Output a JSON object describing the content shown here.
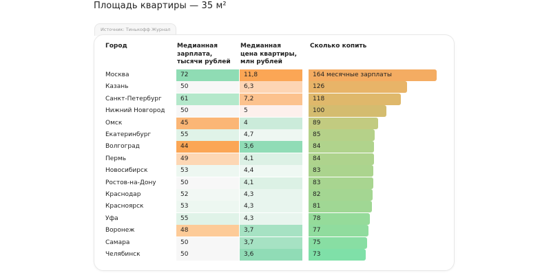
{
  "page_title": "Площадь квартиры — 35 м²",
  "source": "Источник: Тинькофф Журнал",
  "chart_data": {
    "type": "table",
    "title": "Площадь квартиры — 35 м²",
    "columns": [
      "Город",
      "Медианная\nзарплата,\nтысячи рублей",
      "Медианная\nцена квартиры,\nмлн рублей",
      "Сколько копить"
    ],
    "unit_label": "месячные зарплаты",
    "rows": [
      {
        "city": "Москва",
        "salary": "72",
        "price": "11,8",
        "months": 164,
        "months_label": "164 месячные зарплаты"
      },
      {
        "city": "Казань",
        "salary": "50",
        "price": "6,3",
        "months": 126,
        "months_label": "126"
      },
      {
        "city": "Санкт-Петербург",
        "salary": "61",
        "price": "7,2",
        "months": 118,
        "months_label": "118"
      },
      {
        "city": "Нижний Новгород",
        "salary": "50",
        "price": "5",
        "months": 100,
        "months_label": "100"
      },
      {
        "city": "Омск",
        "salary": "45",
        "price": "4",
        "months": 89,
        "months_label": "89"
      },
      {
        "city": "Екатеринбург",
        "salary": "55",
        "price": "4,7",
        "months": 85,
        "months_label": "85"
      },
      {
        "city": "Волгоград",
        "salary": "44",
        "price": "3,6",
        "months": 84,
        "months_label": "84"
      },
      {
        "city": "Пермь",
        "salary": "49",
        "price": "4,1",
        "months": 84,
        "months_label": "84"
      },
      {
        "city": "Новосибирск",
        "salary": "53",
        "price": "4,4",
        "months": 83,
        "months_label": "83"
      },
      {
        "city": "Ростов-на-Дону",
        "salary": "50",
        "price": "4,1",
        "months": 83,
        "months_label": "83"
      },
      {
        "city": "Краснодар",
        "salary": "52",
        "price": "4,3",
        "months": 82,
        "months_label": "82"
      },
      {
        "city": "Красноярск",
        "salary": "53",
        "price": "4,3",
        "months": 81,
        "months_label": "81"
      },
      {
        "city": "Уфа",
        "salary": "55",
        "price": "4,3",
        "months": 78,
        "months_label": "78"
      },
      {
        "city": "Воронеж",
        "salary": "48",
        "price": "3,7",
        "months": 77,
        "months_label": "77"
      },
      {
        "city": "Самара",
        "salary": "50",
        "price": "3,7",
        "months": 75,
        "months_label": "75"
      },
      {
        "city": "Челябинск",
        "salary": "50",
        "price": "3,6",
        "months": 73,
        "months_label": "73"
      }
    ],
    "salary_colors": [
      "#8fdcb4",
      "#f7f7f7",
      "#b4e8cb",
      "#f7f7f7",
      "#fbb676",
      "#e0f3e8",
      "#fba655",
      "#fdd7b4",
      "#edf7f1",
      "#f7f7f7",
      "#f2f8f4",
      "#edf7f1",
      "#e0f3e8",
      "#fdcb98",
      "#f7f7f7",
      "#f7f7f7"
    ],
    "price_colors": [
      "#fba655",
      "#fdd5b4",
      "#fcc28e",
      "#fdf0ec",
      "#cbebda",
      "#eef7f2",
      "#90dcb6",
      "#dcf1e5",
      "#eff8f3",
      "#dcf1e5",
      "#e8f5ee",
      "#e8f5ee",
      "#e8f5ee",
      "#a6e2c3",
      "#a6e2c3",
      "#90dcb6"
    ],
    "bar_colors": [
      "#f4ac62",
      "#e8b468",
      "#dfb86b",
      "#d4bc6f",
      "#c2cb80",
      "#b5d189",
      "#b0d38c",
      "#aed38d",
      "#abd48e",
      "#a8d590",
      "#a4d692",
      "#a0d794",
      "#95db9a",
      "#90dc9e",
      "#88dea3",
      "#7fe0a8"
    ]
  }
}
